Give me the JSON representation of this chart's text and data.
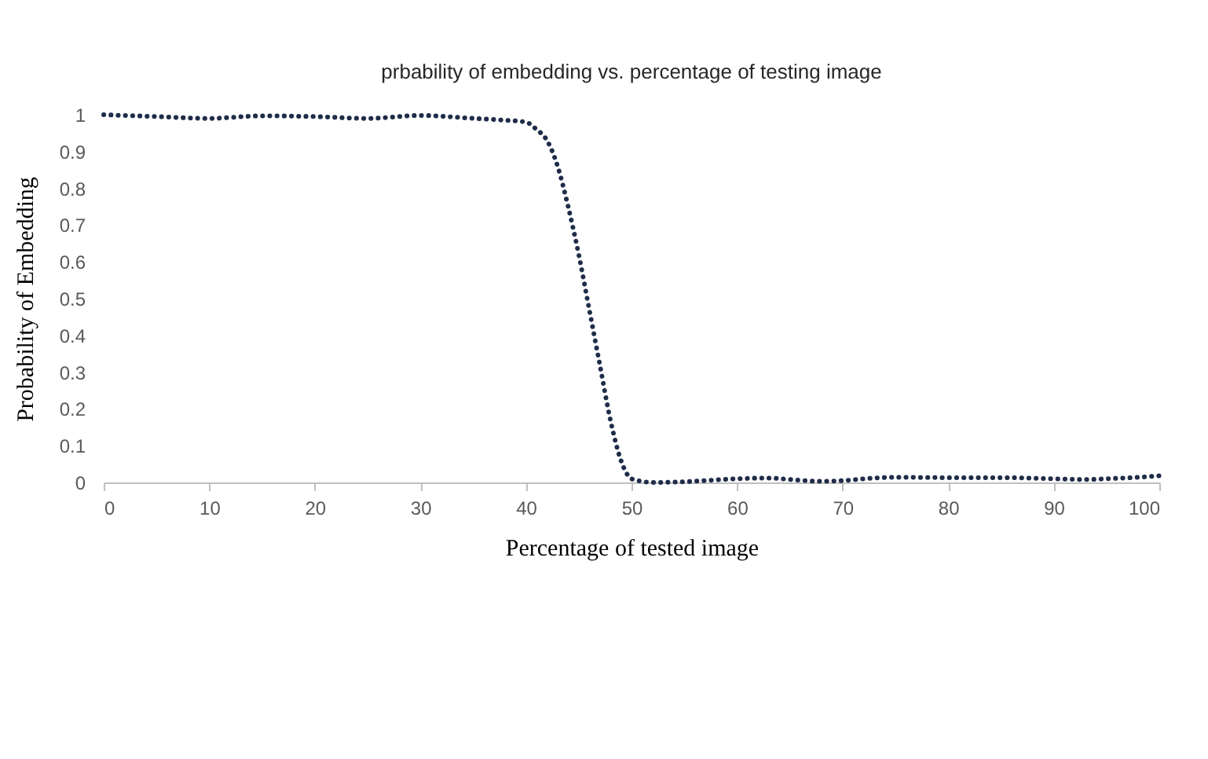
{
  "chart_data": {
    "type": "line",
    "title": "prbability of embedding  vs. percentage of testing image",
    "xlabel": "Percentage of tested image",
    "ylabel": "Probability of Embedding",
    "x": [
      0,
      5,
      10,
      15,
      20,
      25,
      30,
      35,
      38,
      40,
      41,
      42,
      43,
      44,
      45,
      46,
      47,
      48,
      49,
      50,
      51,
      52,
      55,
      60,
      63,
      65,
      68,
      70,
      73,
      75,
      80,
      85,
      90,
      93,
      95,
      98,
      100
    ],
    "series": [
      {
        "color": "#1f2d4a",
        "values": [
          1.0,
          0.995,
          0.99,
          0.997,
          0.995,
          0.99,
          0.998,
          0.99,
          0.985,
          0.98,
          0.96,
          0.93,
          0.86,
          0.75,
          0.62,
          0.47,
          0.32,
          0.17,
          0.06,
          0.01,
          0.003,
          0.0,
          0.002,
          0.01,
          0.012,
          0.008,
          0.003,
          0.005,
          0.012,
          0.014,
          0.013,
          0.013,
          0.01,
          0.008,
          0.01,
          0.014,
          0.018
        ]
      }
    ],
    "xlim": [
      0,
      100
    ],
    "xticks": [
      0,
      10,
      20,
      30,
      40,
      50,
      60,
      70,
      80,
      90,
      100
    ],
    "ylim": [
      0,
      1
    ],
    "yticks": [
      0,
      0.1,
      0.2,
      0.3,
      0.4,
      0.5,
      0.6,
      0.7,
      0.8,
      0.9,
      1
    ],
    "grid": false,
    "marker": "none",
    "line_style": "dotted"
  }
}
